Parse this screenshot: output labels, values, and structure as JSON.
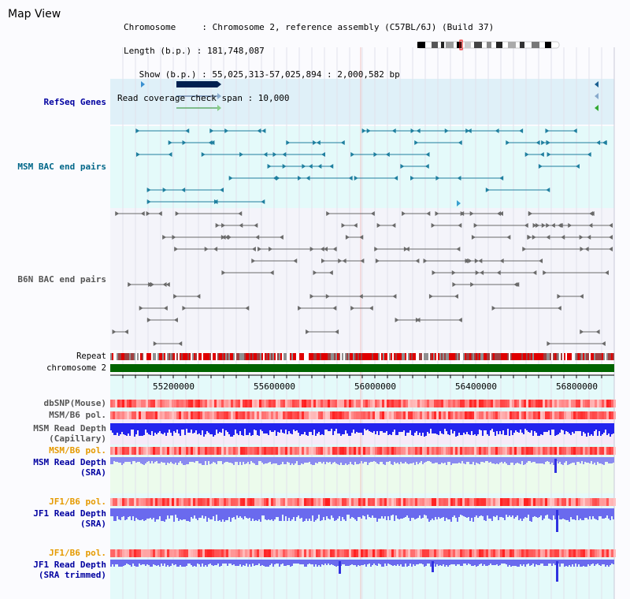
{
  "header": {
    "title": "Map View",
    "info_lines": [
      "Chromosome     : Chromosome 2, reference assembly (C57BL/6J) (Build 37)",
      "Length (b.p.) : 181,748,087",
      " Show (b.p.) : 55,025,313-57,025,894 : 2,000,582 bp",
      "Read coverage check span : 10,000"
    ]
  },
  "tracks": {
    "refseq": "RefSeq Genes",
    "msm_bac": "MSM BAC end pairs",
    "b6n_bac": "B6N BAC end pairs",
    "repeat": "Repeat",
    "chromosome": "chromosome 2",
    "dbsnp": "dbSNP(Mouse)",
    "msm_pol": "MSM/B6 pol.",
    "msm_depth_cap_1": "MSM Read Depth",
    "msm_depth_cap_2": "(Capillary)",
    "msm_pol2": "MSM/B6 pol.",
    "msm_depth_sra_1": "MSM Read Depth",
    "msm_depth_sra_2": "(SRA)",
    "jf1_pol": "JF1/B6 pol.",
    "jf1_depth_sra_1": "JF1 Read Depth",
    "jf1_depth_sra_2": "(SRA)",
    "jf1_pol2": "JF1/B6 pol.",
    "jf1_depth_trim_1": "JF1 Read Depth",
    "jf1_depth_trim_2": "(SRA trimmed)"
  },
  "ruler": {
    "ticks": [
      "55200000",
      "55600000",
      "56000000",
      "56400000",
      "56800000"
    ]
  },
  "colors": {
    "refseq_bg": "#dff0f8",
    "bac_bg": "#e4fafa",
    "msm_label": "#006688",
    "depth_label": "#0000a0",
    "pol_label": "#e59a00",
    "refseq_label": "#0000a0",
    "chromosome_bar": "#006400",
    "depth_bar": "#1a1af0",
    "depth_bar_light": "#6f6ff0"
  },
  "icons": {
    "chromosome_ideogram": "chromosome-ideogram"
  }
}
